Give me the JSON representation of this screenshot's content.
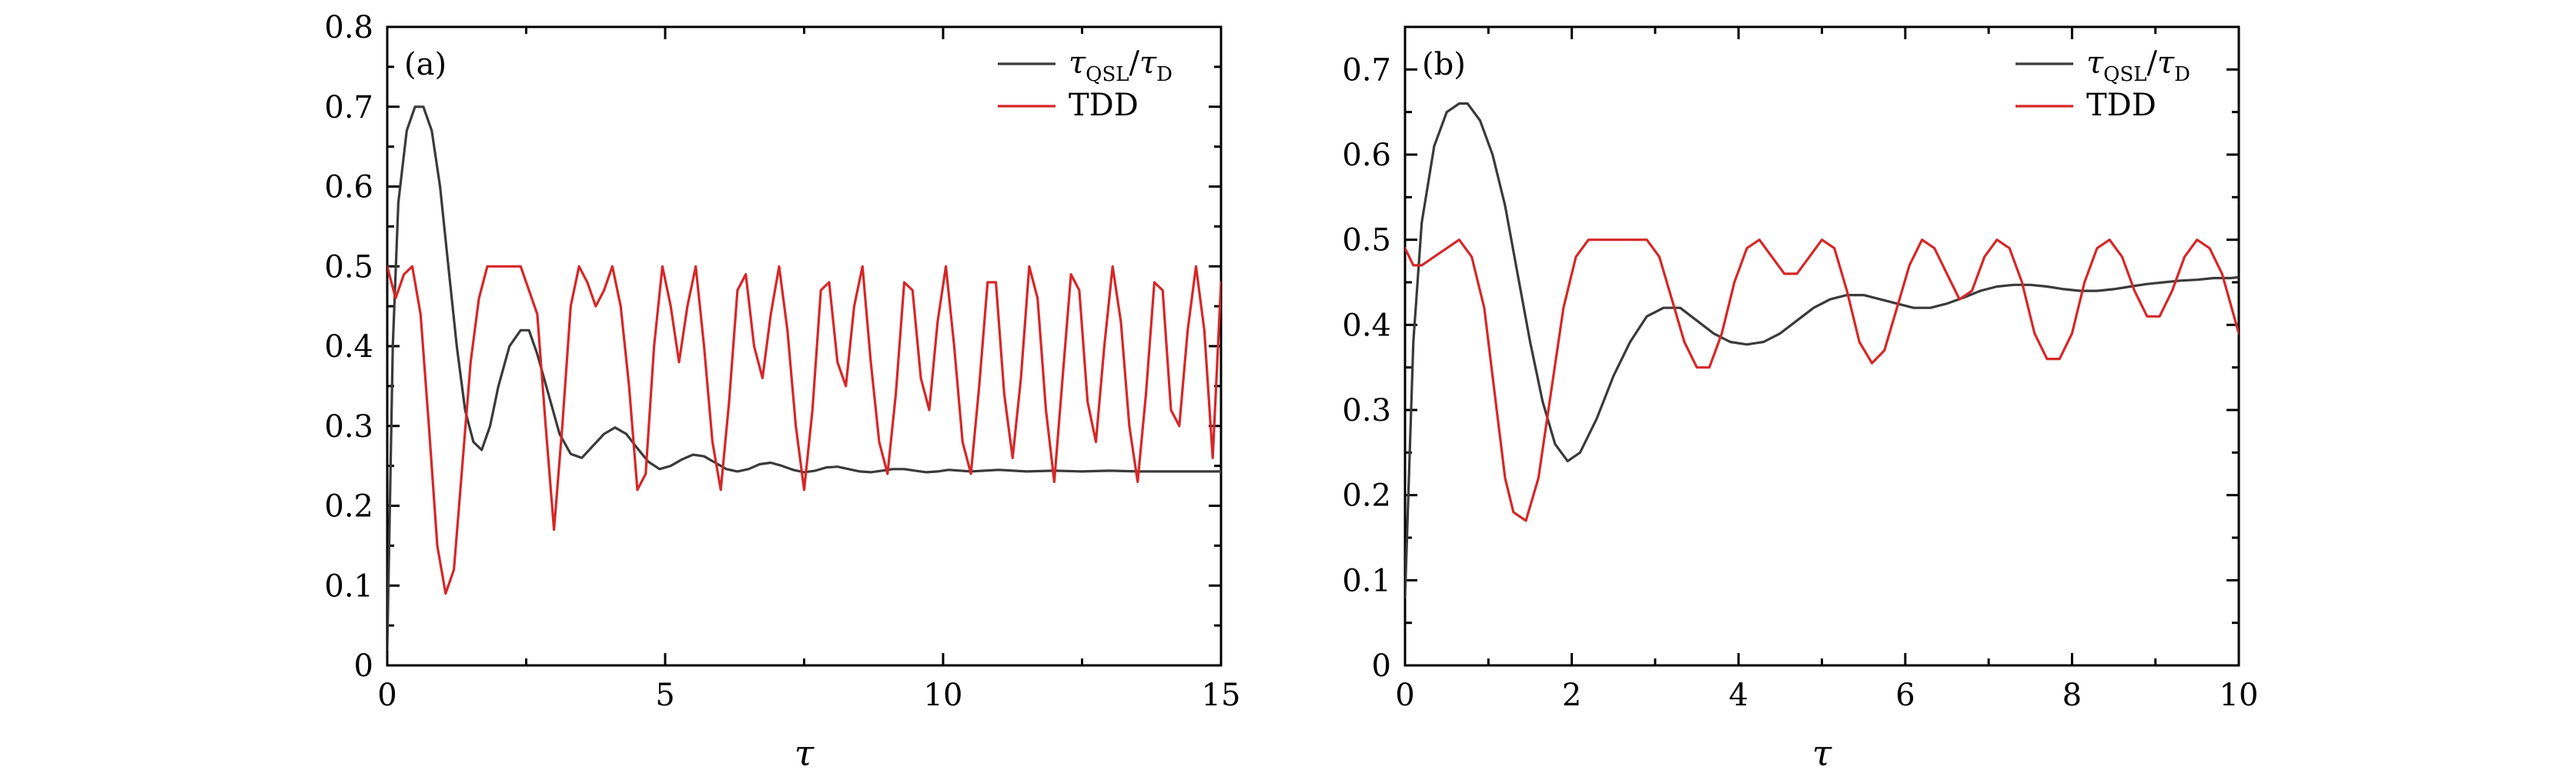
{
  "colors": {
    "qsl": "#3a3a3a",
    "tdd": "#d62728"
  },
  "chart_data": [
    {
      "type": "line",
      "panel_label": "(a)",
      "xlabel": "τ",
      "xlim": [
        0,
        15
      ],
      "ylim": [
        0,
        0.8
      ],
      "xticks": [
        "0",
        "5",
        "10",
        "15"
      ],
      "yticks": [
        "0",
        "0.1",
        "0.2",
        "0.3",
        "0.4",
        "0.5",
        "0.6",
        "0.7",
        "0.8"
      ],
      "legend": {
        "position": "top-right",
        "entries": [
          {
            "name": "τQSL/τD",
            "symbol": "τ",
            "sub1": "QSL",
            "sep": "/",
            "symbol2": "τ",
            "sub2": "D"
          },
          {
            "name": "TDD"
          }
        ]
      },
      "series": [
        {
          "name": "τQSL/τD",
          "color_key": "qsl",
          "x": [
            0,
            0.1,
            0.2,
            0.35,
            0.5,
            0.65,
            0.8,
            0.95,
            1.1,
            1.25,
            1.4,
            1.55,
            1.7,
            1.85,
            2.0,
            2.2,
            2.4,
            2.55,
            2.7,
            2.9,
            3.1,
            3.3,
            3.5,
            3.7,
            3.9,
            4.1,
            4.3,
            4.5,
            4.7,
            4.9,
            5.1,
            5.3,
            5.5,
            5.7,
            5.9,
            6.1,
            6.3,
            6.5,
            6.7,
            6.9,
            7.1,
            7.3,
            7.5,
            7.7,
            7.9,
            8.1,
            8.3,
            8.5,
            8.7,
            8.9,
            9.1,
            9.3,
            9.5,
            9.7,
            9.9,
            10.1,
            10.5,
            11,
            11.5,
            12,
            12.5,
            13,
            13.5,
            14,
            14.5,
            15
          ],
          "y": [
            0.02,
            0.4,
            0.58,
            0.67,
            0.7,
            0.7,
            0.67,
            0.6,
            0.5,
            0.4,
            0.32,
            0.28,
            0.27,
            0.3,
            0.35,
            0.4,
            0.42,
            0.42,
            0.39,
            0.34,
            0.29,
            0.265,
            0.26,
            0.275,
            0.29,
            0.298,
            0.29,
            0.272,
            0.255,
            0.246,
            0.25,
            0.258,
            0.264,
            0.262,
            0.254,
            0.246,
            0.243,
            0.246,
            0.252,
            0.254,
            0.25,
            0.245,
            0.242,
            0.244,
            0.248,
            0.249,
            0.246,
            0.243,
            0.242,
            0.244,
            0.246,
            0.246,
            0.244,
            0.242,
            0.243,
            0.245,
            0.243,
            0.245,
            0.243,
            0.244,
            0.243,
            0.244,
            0.243,
            0.243,
            0.243,
            0.243
          ]
        },
        {
          "name": "TDD",
          "color_key": "tdd",
          "x": [
            0,
            0.15,
            0.3,
            0.45,
            0.6,
            0.75,
            0.9,
            1.05,
            1.2,
            1.35,
            1.5,
            1.65,
            1.8,
            1.95,
            2.1,
            2.4,
            2.7,
            2.85,
            3.0,
            3.15,
            3.3,
            3.45,
            3.6,
            3.75,
            3.9,
            4.05,
            4.2,
            4.35,
            4.5,
            4.65,
            4.8,
            4.95,
            5.1,
            5.25,
            5.4,
            5.55,
            5.7,
            5.85,
            6.0,
            6.15,
            6.3,
            6.45,
            6.6,
            6.75,
            6.9,
            7.05,
            7.2,
            7.35,
            7.5,
            7.65,
            7.8,
            7.95,
            8.1,
            8.25,
            8.4,
            8.55,
            8.7,
            8.85,
            9.0,
            9.15,
            9.3,
            9.45,
            9.6,
            9.75,
            9.9,
            10.05,
            10.2,
            10.35,
            10.5,
            10.65,
            10.8,
            10.95,
            11.1,
            11.25,
            11.4,
            11.55,
            11.7,
            11.85,
            12.0,
            12.15,
            12.3,
            12.45,
            12.6,
            12.75,
            12.9,
            13.05,
            13.2,
            13.35,
            13.5,
            13.65,
            13.8,
            13.95,
            14.1,
            14.25,
            14.4,
            14.55,
            14.7,
            14.85,
            15.0
          ],
          "y": [
            0.5,
            0.46,
            0.49,
            0.5,
            0.44,
            0.3,
            0.15,
            0.09,
            0.12,
            0.25,
            0.38,
            0.46,
            0.5,
            0.5,
            0.5,
            0.5,
            0.44,
            0.3,
            0.17,
            0.3,
            0.45,
            0.5,
            0.48,
            0.45,
            0.47,
            0.5,
            0.45,
            0.35,
            0.22,
            0.24,
            0.4,
            0.5,
            0.45,
            0.38,
            0.45,
            0.5,
            0.4,
            0.28,
            0.22,
            0.33,
            0.47,
            0.49,
            0.4,
            0.36,
            0.44,
            0.5,
            0.42,
            0.3,
            0.22,
            0.32,
            0.47,
            0.48,
            0.38,
            0.35,
            0.45,
            0.5,
            0.38,
            0.28,
            0.24,
            0.34,
            0.48,
            0.47,
            0.36,
            0.32,
            0.43,
            0.5,
            0.4,
            0.28,
            0.24,
            0.35,
            0.48,
            0.48,
            0.34,
            0.26,
            0.36,
            0.5,
            0.46,
            0.32,
            0.23,
            0.36,
            0.49,
            0.47,
            0.33,
            0.28,
            0.4,
            0.5,
            0.43,
            0.3,
            0.23,
            0.34,
            0.48,
            0.47,
            0.32,
            0.3,
            0.42,
            0.5,
            0.42,
            0.26,
            0.48
          ]
        }
      ]
    },
    {
      "type": "line",
      "panel_label": "(b)",
      "xlabel": "τ",
      "xlim": [
        0,
        10
      ],
      "ylim": [
        0,
        0.75
      ],
      "xticks": [
        "0",
        "2",
        "4",
        "6",
        "8",
        "10"
      ],
      "yticks": [
        "0",
        "0.1",
        "0.2",
        "0.3",
        "0.4",
        "0.5",
        "0.6",
        "0.7"
      ],
      "legend": {
        "position": "top-right",
        "entries": [
          {
            "name": "τQSL/τD",
            "symbol": "τ",
            "sub1": "QSL",
            "sep": "/",
            "symbol2": "τ",
            "sub2": "D"
          },
          {
            "name": "TDD"
          }
        ]
      },
      "series": [
        {
          "name": "τQSL/τD",
          "color_key": "qsl",
          "x": [
            0,
            0.1,
            0.2,
            0.35,
            0.5,
            0.65,
            0.75,
            0.9,
            1.05,
            1.2,
            1.35,
            1.5,
            1.65,
            1.8,
            1.95,
            2.1,
            2.3,
            2.5,
            2.7,
            2.9,
            3.1,
            3.3,
            3.5,
            3.7,
            3.9,
            4.1,
            4.3,
            4.5,
            4.7,
            4.9,
            5.1,
            5.3,
            5.5,
            5.7,
            5.9,
            6.1,
            6.3,
            6.5,
            6.7,
            6.9,
            7.1,
            7.3,
            7.5,
            7.7,
            7.9,
            8.1,
            8.3,
            8.5,
            8.7,
            8.9,
            9.1,
            9.3,
            9.5,
            9.7,
            9.9,
            10.0
          ],
          "y": [
            0.08,
            0.38,
            0.52,
            0.61,
            0.65,
            0.66,
            0.66,
            0.64,
            0.6,
            0.54,
            0.46,
            0.38,
            0.31,
            0.26,
            0.24,
            0.25,
            0.29,
            0.34,
            0.38,
            0.41,
            0.42,
            0.42,
            0.405,
            0.39,
            0.38,
            0.377,
            0.38,
            0.39,
            0.405,
            0.42,
            0.43,
            0.435,
            0.435,
            0.43,
            0.425,
            0.42,
            0.42,
            0.425,
            0.432,
            0.44,
            0.445,
            0.447,
            0.447,
            0.445,
            0.442,
            0.44,
            0.44,
            0.442,
            0.445,
            0.448,
            0.45,
            0.452,
            0.453,
            0.455,
            0.455,
            0.456
          ]
        },
        {
          "name": "TDD",
          "color_key": "tdd",
          "x": [
            0,
            0.1,
            0.2,
            0.35,
            0.5,
            0.65,
            0.8,
            0.95,
            1.1,
            1.2,
            1.3,
            1.45,
            1.6,
            1.75,
            1.9,
            2.05,
            2.2,
            2.4,
            2.6,
            2.75,
            2.9,
            3.05,
            3.2,
            3.35,
            3.5,
            3.65,
            3.8,
            3.95,
            4.1,
            4.25,
            4.4,
            4.55,
            4.7,
            4.85,
            5.0,
            5.15,
            5.3,
            5.45,
            5.6,
            5.75,
            5.9,
            6.05,
            6.2,
            6.35,
            6.5,
            6.65,
            6.8,
            6.95,
            7.1,
            7.25,
            7.4,
            7.55,
            7.7,
            7.85,
            8.0,
            8.15,
            8.3,
            8.45,
            8.6,
            8.75,
            8.9,
            9.05,
            9.2,
            9.35,
            9.5,
            9.65,
            9.8,
            10.0
          ],
          "y": [
            0.49,
            0.47,
            0.47,
            0.48,
            0.49,
            0.5,
            0.48,
            0.42,
            0.3,
            0.22,
            0.18,
            0.17,
            0.22,
            0.32,
            0.42,
            0.48,
            0.5,
            0.5,
            0.5,
            0.5,
            0.5,
            0.48,
            0.43,
            0.38,
            0.35,
            0.35,
            0.39,
            0.45,
            0.49,
            0.5,
            0.48,
            0.46,
            0.46,
            0.48,
            0.5,
            0.49,
            0.44,
            0.38,
            0.355,
            0.37,
            0.42,
            0.47,
            0.5,
            0.49,
            0.46,
            0.43,
            0.44,
            0.48,
            0.5,
            0.49,
            0.45,
            0.39,
            0.36,
            0.36,
            0.39,
            0.45,
            0.49,
            0.5,
            0.48,
            0.44,
            0.41,
            0.41,
            0.44,
            0.48,
            0.5,
            0.49,
            0.46,
            0.39
          ]
        }
      ]
    }
  ]
}
